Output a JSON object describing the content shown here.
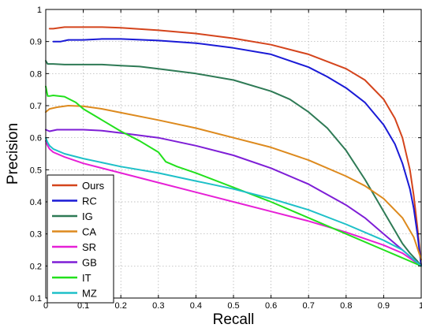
{
  "chart_data": {
    "type": "line",
    "xlabel": "Recall",
    "ylabel": "Precision",
    "xlim": [
      0,
      1
    ],
    "ylim": [
      0.1,
      1
    ],
    "xticks": [
      0,
      0.1,
      0.2,
      0.3,
      0.4,
      0.5,
      0.6,
      0.7,
      0.8,
      0.9,
      1
    ],
    "yticks": [
      0.1,
      0.2,
      0.3,
      0.4,
      0.5,
      0.6,
      0.7,
      0.8,
      0.9,
      1
    ],
    "grid": true,
    "legend_position": "bottom-left",
    "series": [
      {
        "name": "Ours",
        "color": "#d4441c",
        "x": [
          0.01,
          0.02,
          0.05,
          0.1,
          0.15,
          0.2,
          0.3,
          0.4,
          0.5,
          0.6,
          0.7,
          0.8,
          0.85,
          0.9,
          0.93,
          0.95,
          0.97,
          0.98,
          0.99,
          1.0
        ],
        "y": [
          0.94,
          0.94,
          0.945,
          0.945,
          0.945,
          0.943,
          0.935,
          0.925,
          0.91,
          0.89,
          0.86,
          0.815,
          0.78,
          0.72,
          0.66,
          0.6,
          0.5,
          0.42,
          0.32,
          0.2
        ]
      },
      {
        "name": "RC",
        "color": "#1a1ad6",
        "x": [
          0.02,
          0.04,
          0.06,
          0.1,
          0.15,
          0.2,
          0.3,
          0.4,
          0.5,
          0.6,
          0.7,
          0.75,
          0.8,
          0.85,
          0.9,
          0.93,
          0.95,
          0.97,
          0.98,
          0.99,
          1.0
        ],
        "y": [
          0.9,
          0.9,
          0.905,
          0.905,
          0.908,
          0.908,
          0.903,
          0.895,
          0.88,
          0.86,
          0.82,
          0.79,
          0.755,
          0.71,
          0.64,
          0.58,
          0.52,
          0.44,
          0.38,
          0.3,
          0.2
        ]
      },
      {
        "name": "IG",
        "color": "#2e7a55",
        "x": [
          0.0,
          0.005,
          0.02,
          0.05,
          0.1,
          0.15,
          0.2,
          0.25,
          0.3,
          0.4,
          0.5,
          0.6,
          0.65,
          0.7,
          0.75,
          0.8,
          0.85,
          0.9,
          0.93,
          0.95,
          0.97,
          0.99,
          1.0
        ],
        "y": [
          0.84,
          0.83,
          0.83,
          0.828,
          0.828,
          0.828,
          0.825,
          0.822,
          0.815,
          0.8,
          0.78,
          0.745,
          0.72,
          0.68,
          0.63,
          0.56,
          0.47,
          0.37,
          0.31,
          0.27,
          0.24,
          0.215,
          0.2
        ]
      },
      {
        "name": "CA",
        "color": "#dd8a1e",
        "x": [
          0.0,
          0.005,
          0.01,
          0.03,
          0.06,
          0.1,
          0.15,
          0.2,
          0.3,
          0.4,
          0.5,
          0.6,
          0.7,
          0.8,
          0.85,
          0.9,
          0.95,
          0.98,
          1.0
        ],
        "y": [
          0.68,
          0.685,
          0.69,
          0.695,
          0.7,
          0.698,
          0.69,
          0.678,
          0.655,
          0.63,
          0.6,
          0.57,
          0.53,
          0.48,
          0.45,
          0.41,
          0.35,
          0.29,
          0.22
        ]
      },
      {
        "name": "SR",
        "color": "#e620d6",
        "x": [
          0.0,
          0.005,
          0.01,
          0.02,
          0.05,
          0.1,
          0.2,
          0.3,
          0.4,
          0.5,
          0.6,
          0.7,
          0.8,
          0.9,
          0.95,
          1.0
        ],
        "y": [
          0.59,
          0.575,
          0.565,
          0.555,
          0.54,
          0.52,
          0.49,
          0.46,
          0.43,
          0.4,
          0.37,
          0.34,
          0.305,
          0.265,
          0.24,
          0.2
        ]
      },
      {
        "name": "GB",
        "color": "#7e1ed6",
        "x": [
          0.0,
          0.01,
          0.03,
          0.06,
          0.1,
          0.15,
          0.2,
          0.3,
          0.4,
          0.5,
          0.6,
          0.7,
          0.8,
          0.85,
          0.9,
          0.95,
          0.98,
          1.0
        ],
        "y": [
          0.625,
          0.62,
          0.625,
          0.625,
          0.625,
          0.622,
          0.615,
          0.6,
          0.575,
          0.545,
          0.505,
          0.455,
          0.39,
          0.35,
          0.3,
          0.25,
          0.22,
          0.2
        ]
      },
      {
        "name": "IT",
        "color": "#22e01c",
        "x": [
          0.0,
          0.005,
          0.01,
          0.02,
          0.05,
          0.08,
          0.1,
          0.15,
          0.2,
          0.25,
          0.3,
          0.32,
          0.35,
          0.4,
          0.5,
          0.6,
          0.7,
          0.8,
          0.9,
          1.0
        ],
        "y": [
          0.76,
          0.73,
          0.73,
          0.732,
          0.728,
          0.71,
          0.69,
          0.655,
          0.62,
          0.59,
          0.555,
          0.525,
          0.51,
          0.49,
          0.445,
          0.4,
          0.35,
          0.3,
          0.25,
          0.2
        ]
      },
      {
        "name": "MZ",
        "color": "#1ec0c8",
        "x": [
          0.0,
          0.005,
          0.01,
          0.02,
          0.05,
          0.1,
          0.2,
          0.3,
          0.4,
          0.5,
          0.6,
          0.7,
          0.8,
          0.9,
          0.95,
          1.0
        ],
        "y": [
          0.6,
          0.585,
          0.575,
          0.565,
          0.55,
          0.535,
          0.51,
          0.49,
          0.465,
          0.44,
          0.41,
          0.375,
          0.33,
          0.28,
          0.25,
          0.2
        ]
      }
    ]
  }
}
